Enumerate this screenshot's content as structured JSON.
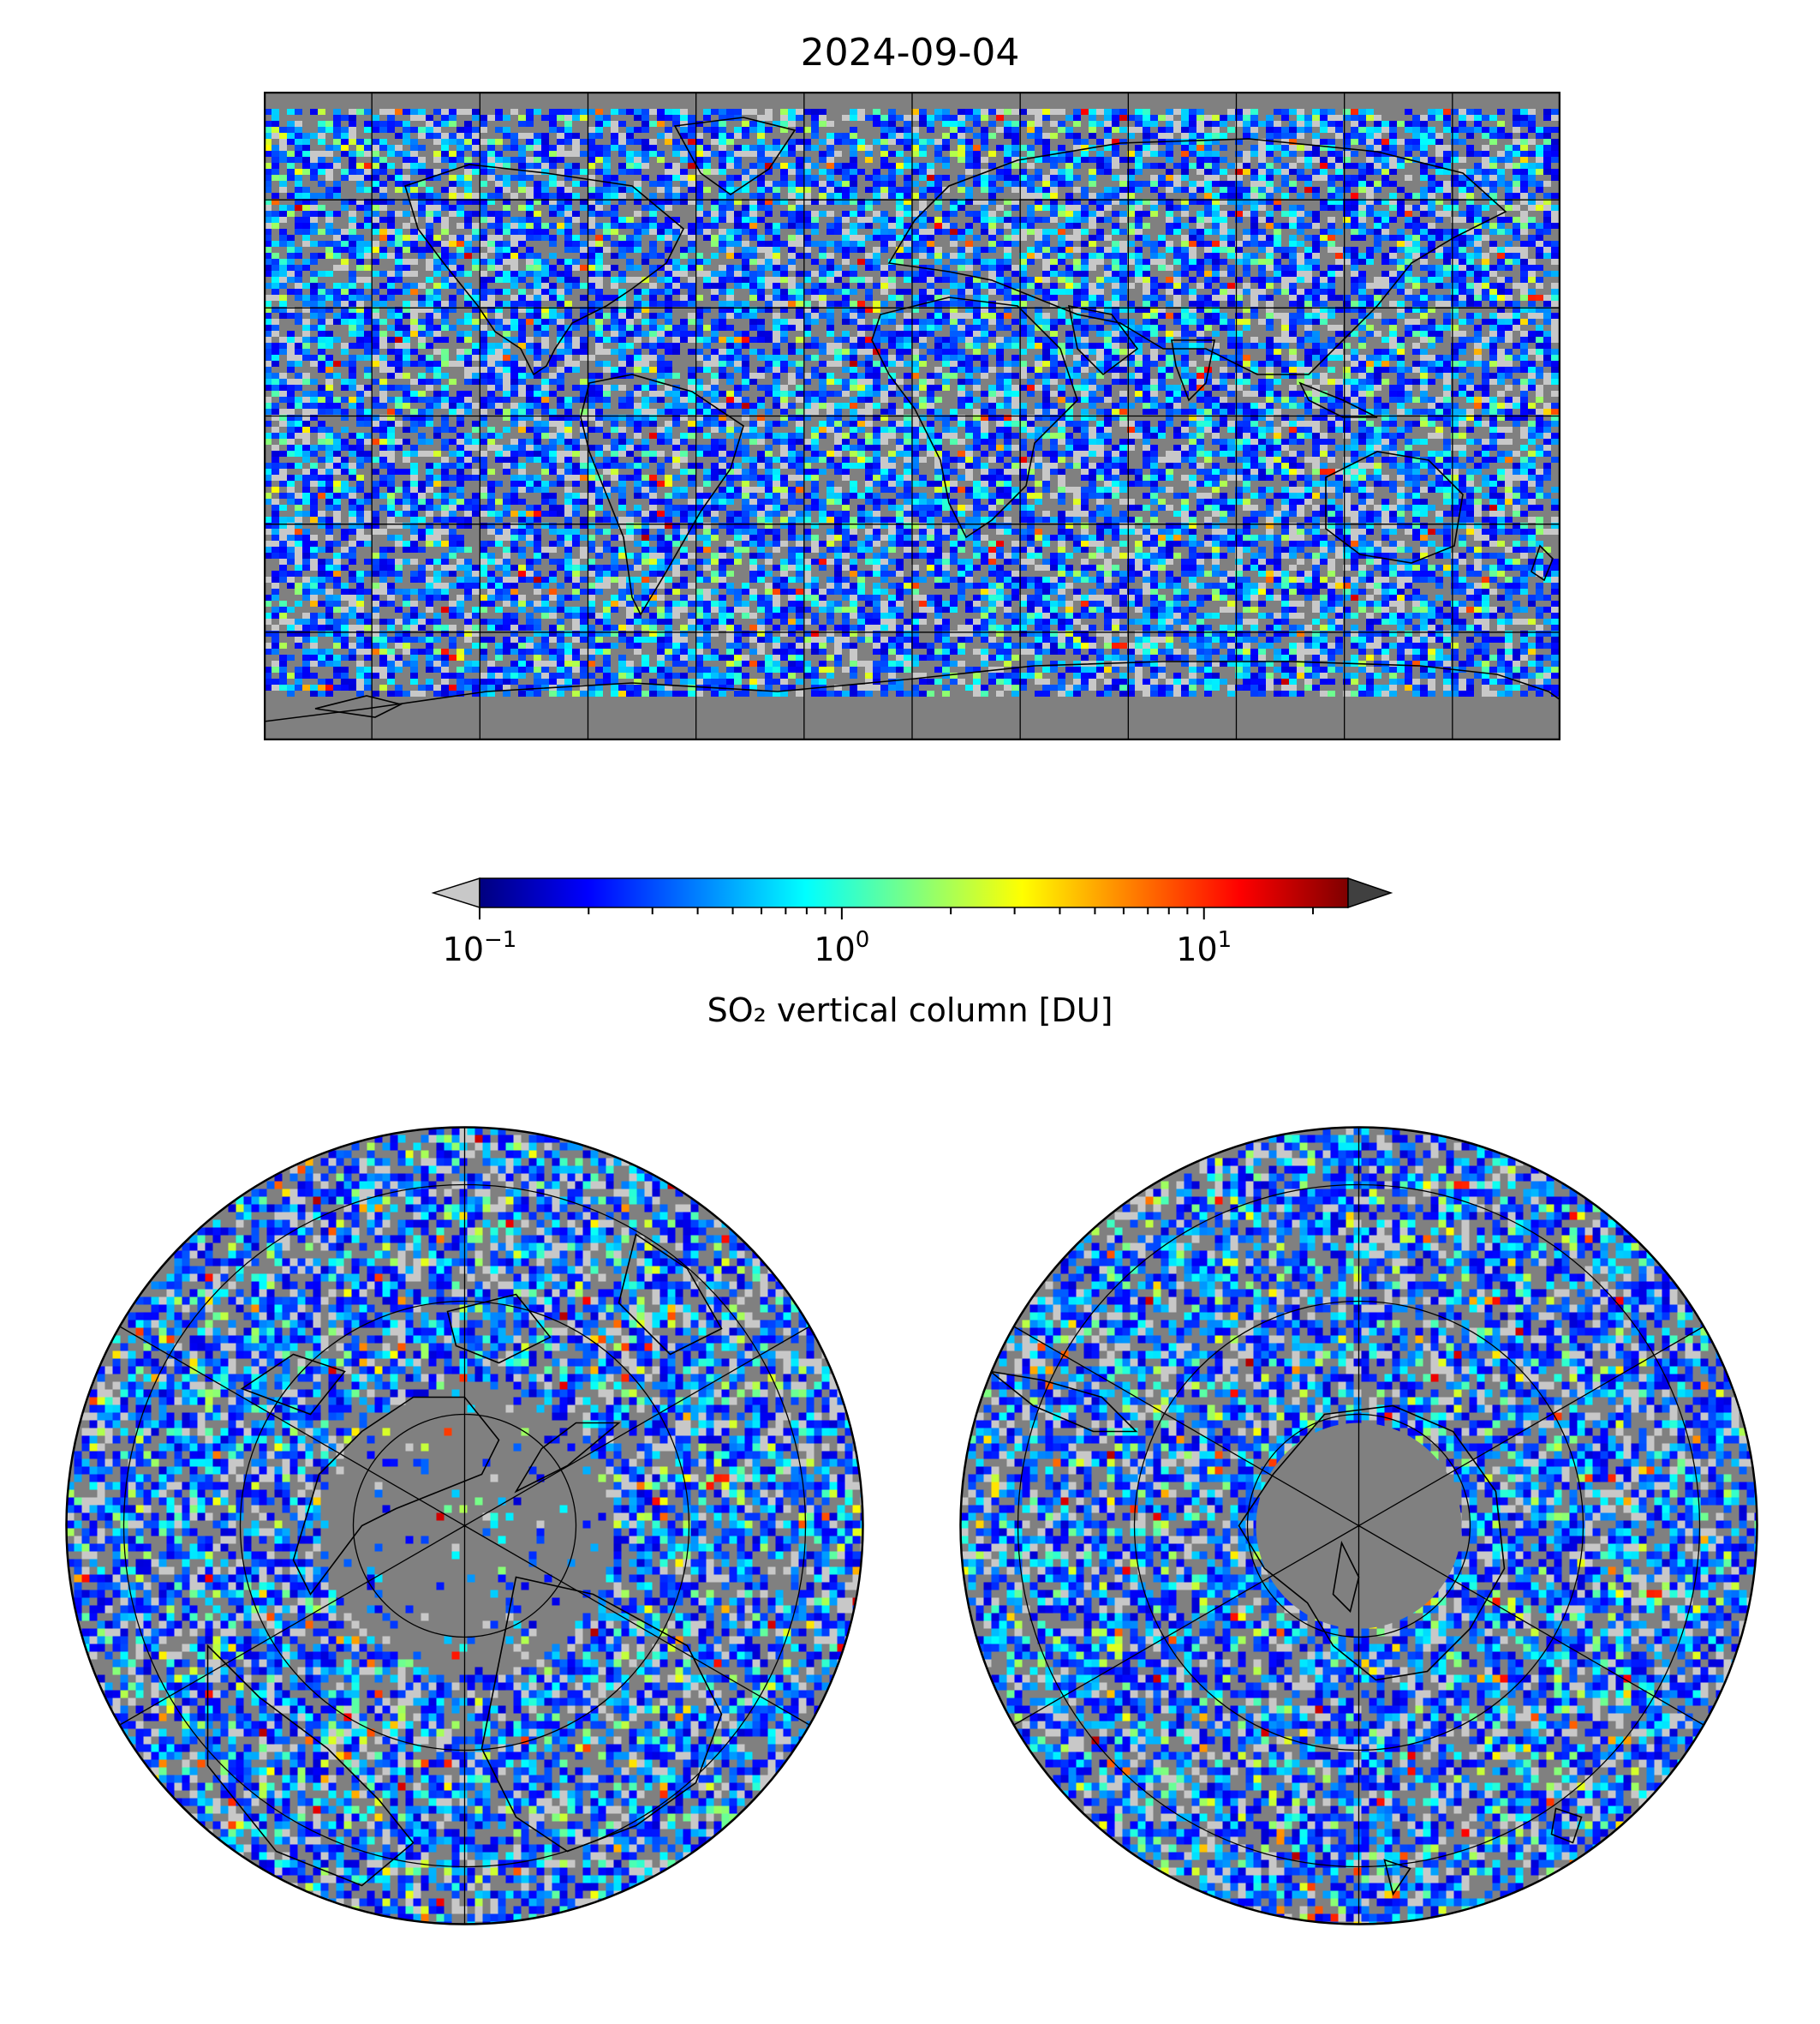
{
  "title": "2024-09-04",
  "colorbar": {
    "label": "SO₂ vertical column [DU]",
    "scale": "log",
    "range": [
      0.1,
      25
    ],
    "ticks": [
      {
        "value": 0.1,
        "base": "10",
        "exp": "−1"
      },
      {
        "value": 1,
        "base": "10",
        "exp": "0"
      },
      {
        "value": 10,
        "base": "10",
        "exp": "1"
      }
    ],
    "colormap": "jet",
    "under_color": "#c8c8c8",
    "over_color": "#404040",
    "stops": [
      "#00007f",
      "#0000ff",
      "#007fff",
      "#00ffff",
      "#7fff7f",
      "#ffff00",
      "#ff7f00",
      "#ff0000",
      "#7f0000"
    ]
  },
  "maps": {
    "global": {
      "projection": "equirectangular",
      "background": "#808080",
      "grid_lon_step_deg": 30,
      "grid_lat_step_deg": 30
    },
    "north_polar": {
      "projection": "north-polar-stereographic",
      "background": "#808080"
    },
    "south_polar": {
      "projection": "south-polar-stereographic",
      "background": "#808080"
    }
  },
  "colors": {
    "no_data": "#808080",
    "below_range": "#c8c8c8",
    "coastline": "#000000",
    "grid": "#000000"
  }
}
